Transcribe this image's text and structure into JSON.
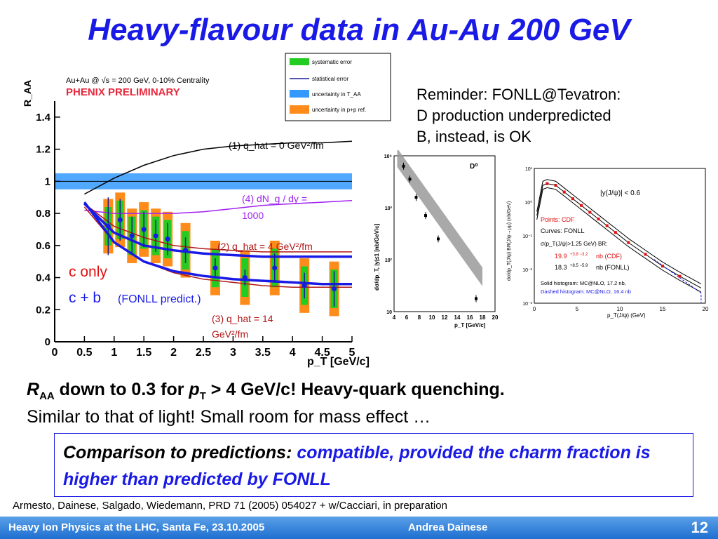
{
  "slide": {
    "title": "Heavy-flavour data in Au-Au 200 GeV",
    "reminder_lines": [
      "Reminder: FONLL@Tevatron:",
      "D production underpredicted",
      "B, instead, is OK"
    ],
    "raa_line": {
      "r": "R",
      "aa": "AA",
      "mid": " down to 0.3 for ",
      "p": "p",
      "t": "T",
      "end": " > 4 GeV/c! Heavy-quark quenching."
    },
    "similar_line": "Similar to that of light! Small room for mass effect …",
    "comparison": {
      "lead": "Comparison to predictions: ",
      "rest": "compatible, provided the charm fraction is higher than predicted by FONLL"
    },
    "reference": "Armesto, Dainese, Salgado, Wiedemann, PRD 71 (2005) 054027 + w/Cacciari, in preparation",
    "footer": {
      "left": "Heavy Ion Physics at the LHC, Santa Fe, 23.10.2005",
      "center": "Andrea Dainese",
      "page": "12"
    }
  },
  "chart_data": [
    {
      "type": "scatter",
      "header": "Au+Au @ √s = 200 GeV, 0-10% Centrality",
      "preliminary": "PHENIX PRELIMINARY",
      "ylabel": "R_AA",
      "xlabel": "p_T [GeV/c]",
      "xlim": [
        0,
        5
      ],
      "ylim": [
        0,
        1.5
      ],
      "x_ticks": [
        "0",
        "0.5",
        "1",
        "1.5",
        "2",
        "2.5",
        "3",
        "3.5",
        "4",
        "4.5",
        "5"
      ],
      "y_ticks": [
        "0",
        "0.2",
        "0.4",
        "0.6",
        "0.8",
        "1",
        "1.2",
        "1.4"
      ],
      "legend": [
        "systematic error",
        "statistical error",
        "uncertainty in T_AA",
        "uncertainty in p+p ref."
      ],
      "curve_labels": [
        "(1) q_hat = 0 GeV²/fm",
        "(4) dN_g / dy =",
        "1000",
        "(2) q_hat = 4 GeV²/fm",
        "(3) q_hat = 14",
        "GeV²/fm"
      ],
      "overlay_labels": {
        "c_only": "c only",
        "cb": "c + b",
        "cb_note": "(FONLL predict.)"
      },
      "points": [
        {
          "x": 0.9,
          "y": 0.72,
          "err": 0.18
        },
        {
          "x": 1.1,
          "y": 0.76,
          "err": 0.13
        },
        {
          "x": 1.3,
          "y": 0.66,
          "err": 0.12
        },
        {
          "x": 1.5,
          "y": 0.7,
          "err": 0.11
        },
        {
          "x": 1.7,
          "y": 0.66,
          "err": 0.1
        },
        {
          "x": 1.9,
          "y": 0.64,
          "err": 0.1
        },
        {
          "x": 2.2,
          "y": 0.57,
          "err": 0.08
        },
        {
          "x": 2.7,
          "y": 0.46,
          "err": 0.06
        },
        {
          "x": 3.2,
          "y": 0.4,
          "err": 0.05
        },
        {
          "x": 3.7,
          "y": 0.46,
          "err": 0.09
        },
        {
          "x": 4.2,
          "y": 0.35,
          "err": 0.08
        },
        {
          "x": 4.7,
          "y": 0.33,
          "err": 0.11
        }
      ],
      "curves": [
        {
          "name": "(1)",
          "color": "#000000",
          "x": [
            0.5,
            1,
            1.5,
            2,
            2.5,
            3,
            3.5,
            4,
            4.5,
            5
          ],
          "y": [
            0.92,
            1.02,
            1.1,
            1.16,
            1.2,
            1.22,
            1.23,
            1.24,
            1.24,
            1.25
          ]
        },
        {
          "name": "(4)",
          "color": "#a020f0",
          "x": [
            0.5,
            1,
            1.5,
            2,
            2.5,
            3,
            3.5,
            4,
            4.5,
            5
          ],
          "y": [
            0.82,
            0.8,
            0.8,
            0.8,
            0.81,
            0.83,
            0.85,
            0.86,
            0.87,
            0.88
          ]
        },
        {
          "name": "(2)",
          "color": "#b01818",
          "x": [
            0.5,
            1,
            1.5,
            2,
            2.5,
            3,
            3.5,
            4,
            4.5,
            5
          ],
          "y": [
            0.86,
            0.72,
            0.65,
            0.6,
            0.58,
            0.57,
            0.56,
            0.56,
            0.56,
            0.56
          ]
        },
        {
          "name": "(3)",
          "color": "#b01818",
          "x": [
            0.5,
            1,
            1.5,
            2,
            2.5,
            3,
            3.5,
            4,
            4.5,
            5
          ],
          "y": [
            0.84,
            0.62,
            0.5,
            0.43,
            0.39,
            0.37,
            0.35,
            0.34,
            0.34,
            0.34
          ]
        },
        {
          "name": "c only",
          "color": "#1a1ae6",
          "x": [
            0.5,
            1,
            1.5,
            2,
            2.5,
            3,
            3.5,
            4,
            4.5,
            5
          ],
          "y": [
            0.86,
            0.68,
            0.6,
            0.57,
            0.55,
            0.54,
            0.53,
            0.53,
            0.53,
            0.53
          ]
        },
        {
          "name": "c + b",
          "color": "#1a1ae6",
          "x": [
            0.5,
            1,
            1.5,
            2,
            2.5,
            3,
            3.5,
            4,
            4.5,
            5
          ],
          "y": [
            0.87,
            0.62,
            0.5,
            0.44,
            0.41,
            0.39,
            0.38,
            0.37,
            0.36,
            0.36
          ]
        }
      ],
      "taa_band": [
        0.95,
        1.05
      ]
    },
    {
      "type": "scatter",
      "label": "D⁰",
      "ylabel": "dσ/dp_T, |y|≤1 [nb/GeV/c]",
      "xlabel": "p_T [GeV/c]",
      "xlim": [
        4,
        20
      ],
      "ylim_log": [
        1,
        4
      ],
      "x_ticks": [
        "4",
        "6",
        "8",
        "10",
        "12",
        "14",
        "16",
        "18",
        "20"
      ],
      "y_ticks": [
        "10",
        "10²",
        "10³",
        "10⁴"
      ],
      "points": [
        {
          "x": 5.5,
          "y": 3.8
        },
        {
          "x": 6.5,
          "y": 3.55
        },
        {
          "x": 7.5,
          "y": 3.2
        },
        {
          "x": 9,
          "y": 2.85
        },
        {
          "x": 11,
          "y": 2.4
        },
        {
          "x": 17,
          "y": 1.25
        }
      ]
    },
    {
      "type": "line",
      "box_label": "|y(J/ψ)| < 0.6",
      "ylabel": "dσ/dp_T(J/ψ) BR(J/ψ→μμ) (nb/GeV)",
      "xlabel": "p_T(J/ψ) (GeV)",
      "xlim": [
        0,
        20
      ],
      "ylim_log": [
        -3,
        1
      ],
      "x_ticks": [
        "0",
        "5",
        "10",
        "15",
        "20"
      ],
      "y_ticks": [
        "10⁻³",
        "10⁻²",
        "10⁻¹",
        "10⁰",
        "10¹"
      ],
      "text": {
        "points_label": "Points: CDF",
        "curves_label": "Curves: FONLL",
        "br_label": "σ(p_T(J/ψ)>1.25 GeV) BR:",
        "cdf_val": "19.9",
        "cdf_err": "+3.8 −3.2",
        "cdf_suffix": "nb (CDF)",
        "fonll_val": "18.3",
        "fonll_err": "+8.5 −5.9",
        "fonll_suffix": "nb (FONLL)",
        "solid_hist": "Solid histogram: MC@NLO, 17.2 nb,",
        "dashed_hist": "Dashed histogram: MC@NLO, 16.4 nb"
      },
      "cdf_points": {
        "x": [
          1.5,
          2.5,
          3.5,
          4.5,
          5.5,
          6.5,
          7.5,
          8.5,
          9.5,
          11,
          13,
          15,
          17
        ],
        "y": [
          0.55,
          0.5,
          0.3,
          0.1,
          -0.1,
          -0.3,
          -0.5,
          -0.7,
          -0.9,
          -1.2,
          -1.55,
          -1.9,
          -2.2
        ]
      }
    }
  ]
}
